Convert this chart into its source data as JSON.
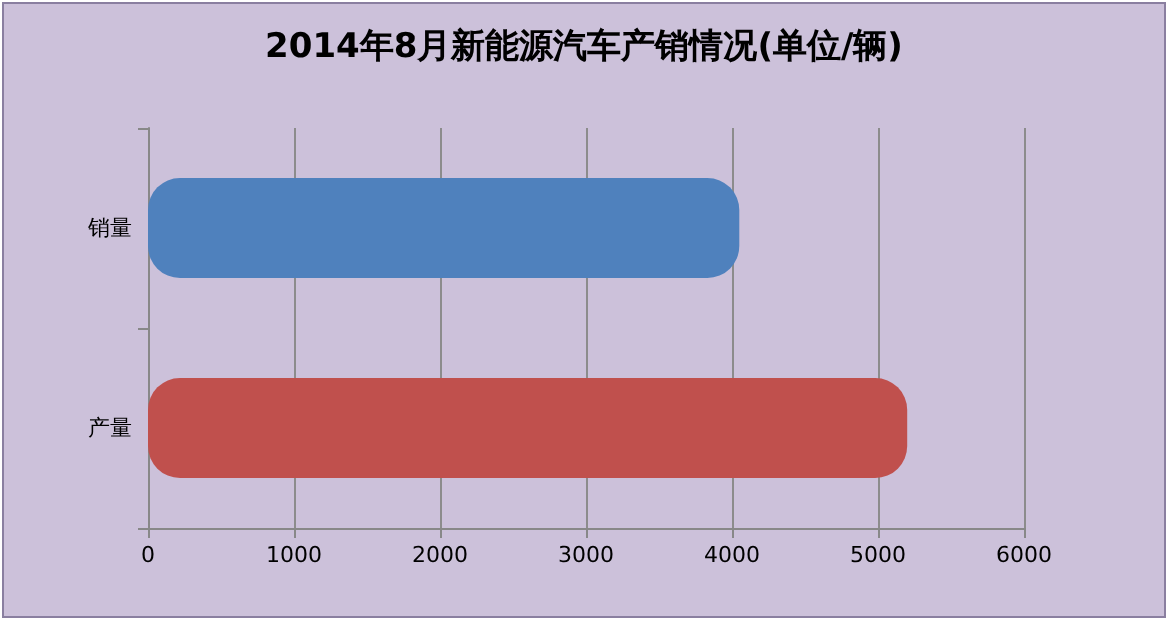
{
  "chart_data": {
    "type": "bar",
    "orientation": "horizontal",
    "title": "2014年8月新能源汽车产销情况(单位/辆)",
    "categories": [
      "销量",
      "产量"
    ],
    "values": [
      4050,
      5200
    ],
    "colors": [
      "#4f81bd",
      "#c0504d"
    ],
    "xlim": [
      0,
      6000
    ],
    "xticks": [
      0,
      1000,
      2000,
      3000,
      4000,
      5000,
      6000
    ],
    "grid": "x"
  }
}
